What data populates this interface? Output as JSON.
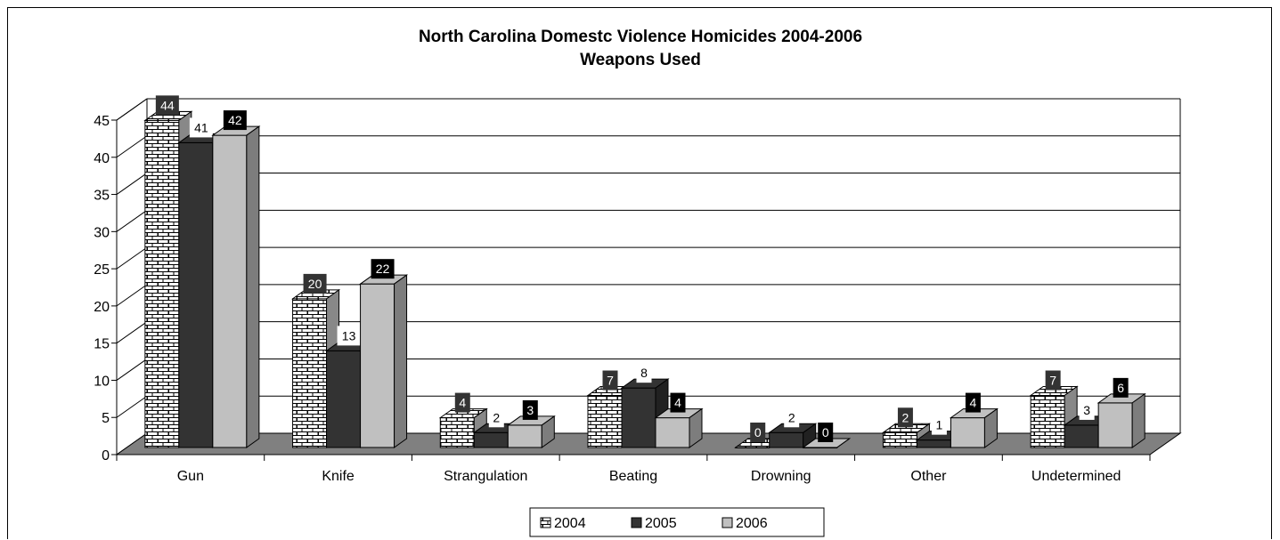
{
  "chart_data": {
    "type": "bar",
    "title": "North Carolina Domestc Violence Homicides 2004-2006",
    "subtitle": "Weapons Used",
    "xlabel": "",
    "ylabel": "",
    "ylim": [
      0,
      45
    ],
    "yticks": [
      "0",
      "5",
      "10",
      "15",
      "20",
      "25",
      "30",
      "35",
      "40",
      "45"
    ],
    "categories": [
      "Gun",
      "Knife",
      "Strangulation",
      "Beating",
      "Drowning",
      "Other",
      "Undetermined"
    ],
    "series": [
      {
        "name": "2004",
        "values": [
          44,
          20,
          4,
          7,
          0,
          2,
          7
        ],
        "fill": "brick",
        "color": "#ffffff"
      },
      {
        "name": "2005",
        "values": [
          41,
          13,
          2,
          8,
          2,
          1,
          3
        ],
        "fill": "solid",
        "color": "#333333"
      },
      {
        "name": "2006",
        "values": [
          42,
          22,
          3,
          4,
          0,
          4,
          6
        ],
        "fill": "solid",
        "color": "#c0c0c0"
      }
    ],
    "data_labels": true,
    "grid": true,
    "legend_position": "bottom",
    "floor_color": "#808080"
  }
}
